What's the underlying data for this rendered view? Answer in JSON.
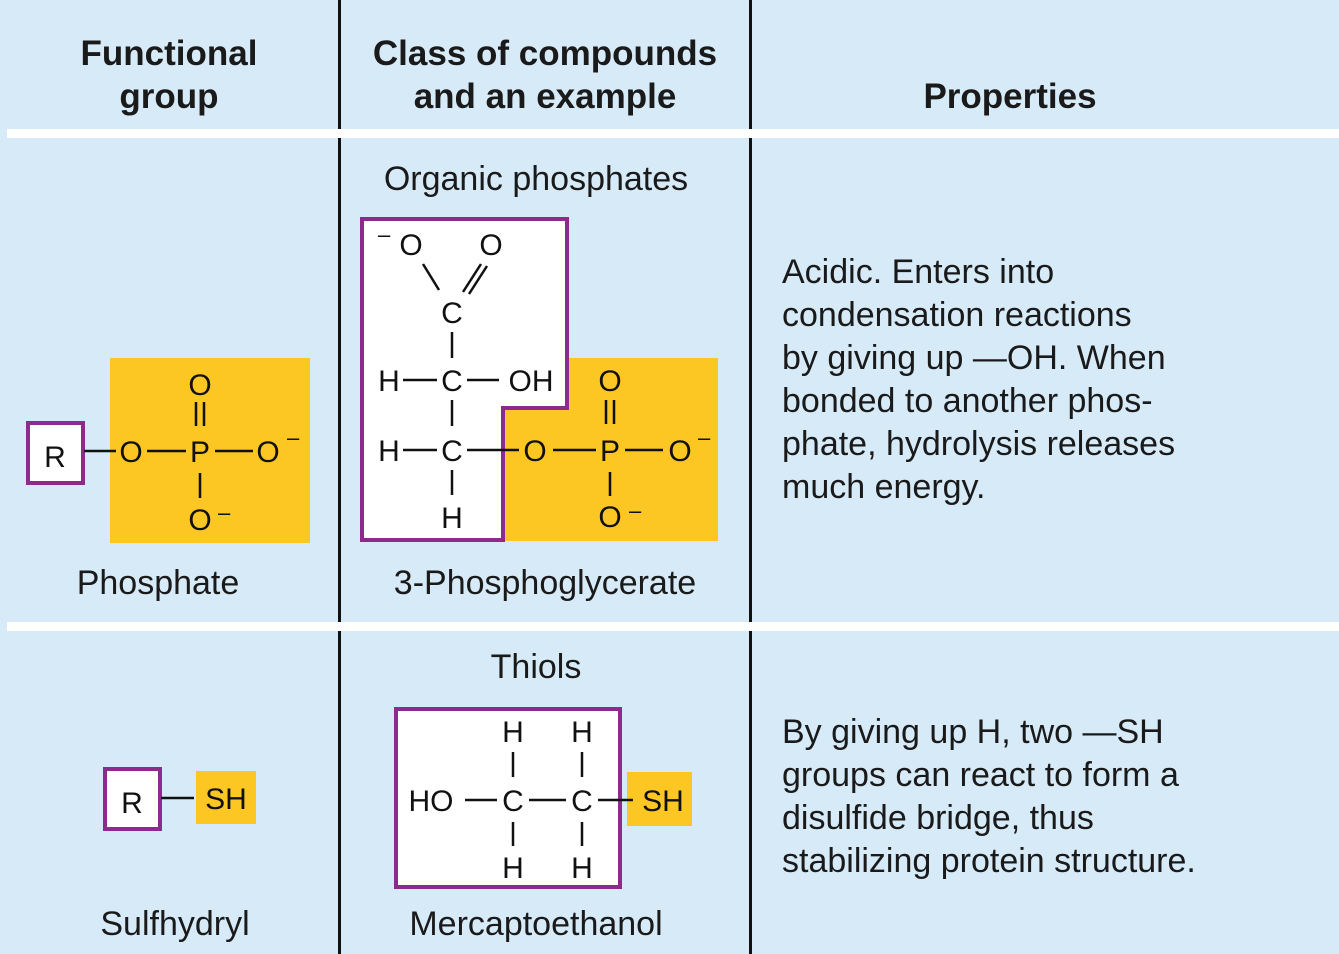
{
  "header": {
    "col1_line1": "Functional",
    "col1_line2": "group",
    "col2_line1": "Class of compounds",
    "col2_line2": "and an example",
    "col3": "Properties"
  },
  "rows": [
    {
      "group_name": "Phosphate",
      "class_name": "Organic phosphates",
      "example_name": "3-Phosphoglycerate",
      "properties": [
        "Acidic. Enters into",
        "condensation reactions",
        "by giving up —OH. When",
        "bonded to another phos-",
        "phate, hydrolysis releases",
        "much energy."
      ]
    },
    {
      "group_name": "Sulfhydryl",
      "class_name": "Thiols",
      "example_name": "Mercaptoethanol",
      "properties": [
        "By giving up H, two —SH",
        "groups can react to form a",
        "disulfide bridge, thus",
        "stabilizing protein structure."
      ]
    }
  ],
  "colors": {
    "background": "#d6eaf8",
    "highlight": "#fcc623",
    "box_border": "#8e2a8e",
    "divider": "#111111"
  }
}
